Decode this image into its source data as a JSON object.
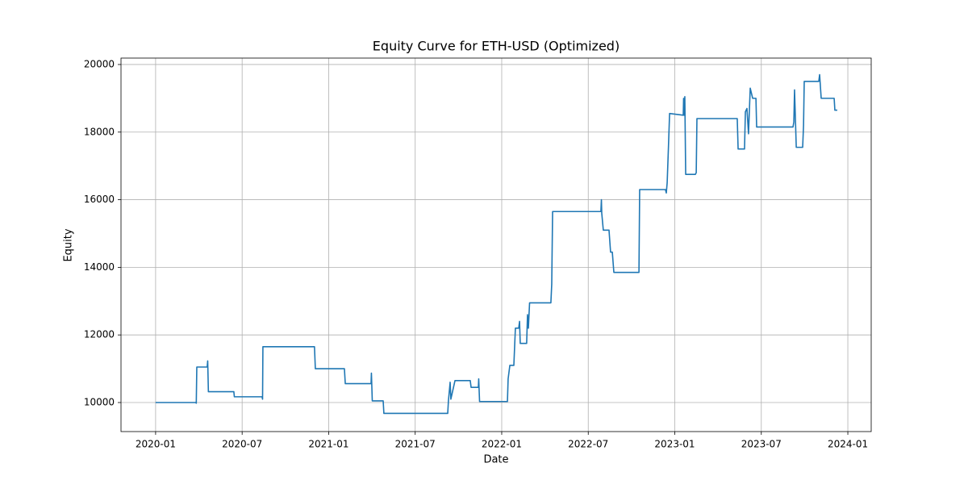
{
  "chart_data": {
    "type": "line",
    "title": "Equity Curve for ETH-USD (Optimized)",
    "x_label": "Date",
    "y_label": "Equity",
    "color": "#1f77b4",
    "grid": true,
    "xlim": [
      2019.8,
      2024.135
    ],
    "ylim": [
      9141,
      20190
    ],
    "xticks": [
      {
        "value": 2020.0,
        "label": "2020-01"
      },
      {
        "value": 2020.5,
        "label": "2020-07"
      },
      {
        "value": 2021.0,
        "label": "2021-01"
      },
      {
        "value": 2021.5,
        "label": "2021-07"
      },
      {
        "value": 2022.0,
        "label": "2022-01"
      },
      {
        "value": 2022.5,
        "label": "2022-07"
      },
      {
        "value": 2023.0,
        "label": "2023-01"
      },
      {
        "value": 2023.5,
        "label": "2023-07"
      },
      {
        "value": 2024.0,
        "label": "2024-01"
      }
    ],
    "yticks": [
      10000,
      12000,
      14000,
      16000,
      18000,
      20000
    ],
    "x": [
      2020.0,
      2020.233,
      2020.235,
      2020.238,
      2020.298,
      2020.301,
      2020.305,
      2020.452,
      2020.455,
      2020.615,
      2020.618,
      2020.62,
      2020.918,
      2020.923,
      2021.091,
      2021.096,
      2021.245,
      2021.247,
      2021.252,
      2021.315,
      2021.319,
      2021.688,
      2021.692,
      2021.702,
      2021.706,
      2021.73,
      2021.818,
      2021.823,
      2021.865,
      2021.867,
      2021.872,
      2022.033,
      2022.037,
      2022.047,
      2022.07,
      2022.079,
      2022.098,
      2022.103,
      2022.107,
      2022.144,
      2022.149,
      2022.154,
      2022.161,
      2022.284,
      2022.289,
      2022.294,
      2022.573,
      2022.576,
      2022.578,
      2022.587,
      2022.62,
      2022.629,
      2022.639,
      2022.648,
      2022.793,
      2022.797,
      2022.946,
      2022.951,
      2022.956,
      2022.963,
      2022.97,
      2023.049,
      2023.051,
      2023.054,
      2023.058,
      2023.063,
      2023.119,
      2023.124,
      2023.128,
      2023.361,
      2023.366,
      2023.403,
      2023.408,
      2023.417,
      2023.426,
      2023.436,
      2023.45,
      2023.469,
      2023.473,
      2023.683,
      2023.688,
      2023.692,
      2023.702,
      2023.739,
      2023.744,
      2023.748,
      2023.832,
      2023.837,
      2023.846,
      2023.921,
      2023.925,
      2023.939
    ],
    "values": [
      10000,
      10000,
      9980,
      11050,
      11050,
      11230,
      10320,
      10320,
      10170,
      10170,
      10100,
      11650,
      11650,
      11000,
      11000,
      10560,
      10560,
      10870,
      10050,
      10050,
      9680,
      9680,
      10050,
      10600,
      10100,
      10650,
      10650,
      10450,
      10450,
      10700,
      10030,
      10030,
      10700,
      11100,
      11100,
      12200,
      12200,
      12400,
      11750,
      11750,
      12600,
      12200,
      12950,
      12950,
      13500,
      15650,
      15650,
      16000,
      15600,
      15100,
      15100,
      14450,
      14450,
      13850,
      13850,
      16300,
      16300,
      16200,
      16500,
      17500,
      18550,
      18500,
      19000,
      18500,
      19050,
      16750,
      16750,
      16800,
      18400,
      18400,
      17500,
      17500,
      18600,
      18700,
      17950,
      19300,
      19000,
      19000,
      18150,
      18150,
      18300,
      19250,
      17550,
      17550,
      18200,
      19500,
      19500,
      19700,
      19000,
      19000,
      18650,
      18650
    ]
  }
}
